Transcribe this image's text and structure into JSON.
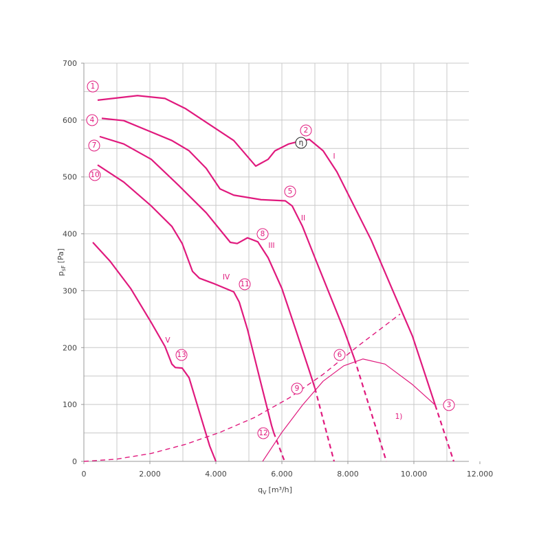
{
  "chart_data": {
    "type": "line",
    "xlabel": {
      "main": "q",
      "sub": "V",
      "unit": "[m³/h]"
    },
    "ylabel": {
      "main": "p",
      "sub": "sF",
      "unit": "[Pa]"
    },
    "xlim": [
      0,
      12000
    ],
    "ylim": [
      0,
      700
    ],
    "xticks": [
      0,
      {
        "value": 2000,
        "label": "2.000"
      },
      {
        "value": 4000,
        "label": "4.000"
      },
      {
        "value": 6000,
        "label": "6.000"
      },
      {
        "value": 8000,
        "label": "8.000"
      },
      {
        "value": 10000,
        "label": "10.000"
      },
      {
        "value": 12000,
        "label": "12.000"
      }
    ],
    "yticks": [
      0,
      100,
      200,
      300,
      400,
      500,
      600,
      700
    ],
    "xgrid": [
      1000,
      2000,
      3000,
      4000,
      5000,
      6000,
      7000,
      8000,
      9000,
      10000,
      11000
    ],
    "ygrid": [
      50,
      100,
      150,
      200,
      250,
      300,
      350,
      400,
      450,
      500,
      550,
      600,
      650,
      700
    ],
    "grid": true,
    "series": [
      {
        "color": "#e0197d",
        "dash": false,
        "width": 2.2,
        "x": [
          417,
          1625,
          2458,
          3083,
          3708,
          4542,
          5208,
          5583,
          5792,
          6208,
          6625,
          6833,
          7250,
          7667,
          8083,
          8708,
          9333,
          9958,
          10646
        ],
        "values": [
          635,
          643,
          638,
          620,
          596,
          564,
          519,
          531,
          546,
          558,
          564,
          566,
          546,
          509,
          461,
          389,
          304,
          220,
          99
        ]
      },
      {
        "color": "#e0197d",
        "dash": true,
        "width": 2.2,
        "x": [
          10646,
          11208
        ],
        "values": [
          99,
          0
        ]
      },
      {
        "color": "#e0197d",
        "dash": false,
        "width": 2.2,
        "x": [
          542,
          1208,
          2042,
          2667,
          3188,
          3708,
          4125,
          4542,
          5375,
          6104,
          6313,
          6625,
          7042,
          7458,
          7875,
          8200
        ],
        "values": [
          603,
          599,
          579,
          564,
          546,
          515,
          479,
          468,
          460,
          458,
          449,
          413,
          352,
          292,
          232,
          180
        ]
      },
      {
        "color": "#e0197d",
        "dash": true,
        "width": 2.2,
        "x": [
          8200,
          9167
        ],
        "values": [
          180,
          0
        ]
      },
      {
        "color": "#e0197d",
        "dash": false,
        "width": 2.2,
        "x": [
          479,
          1208,
          2042,
          2875,
          3708,
          4438,
          4646,
          4958,
          5271,
          5583,
          6000,
          6417,
          6833,
          7000
        ],
        "values": [
          571,
          558,
          531,
          485,
          437,
          385,
          383,
          393,
          386,
          358,
          304,
          232,
          159,
          129
        ]
      },
      {
        "color": "#e0197d",
        "dash": true,
        "width": 2.2,
        "x": [
          7000,
          7583
        ],
        "values": [
          129,
          0
        ]
      },
      {
        "color": "#e0197d",
        "dash": false,
        "width": 2.2,
        "x": [
          417,
          1208,
          2042,
          2667,
          2979,
          3292,
          3500,
          3917,
          4542,
          4708,
          4958,
          5375,
          5688,
          5750
        ],
        "values": [
          521,
          491,
          449,
          413,
          383,
          334,
          322,
          313,
          298,
          280,
          232,
          135,
          63,
          51
        ]
      },
      {
        "color": "#e0197d",
        "dash": true,
        "width": 2.2,
        "x": [
          5750,
          6083
        ],
        "values": [
          51,
          0
        ]
      },
      {
        "color": "#e0197d",
        "dash": false,
        "width": 2.2,
        "x": [
          271,
          792,
          1417,
          2042,
          2458,
          2667,
          2771,
          2979,
          3188,
          3500,
          3813,
          4000
        ],
        "values": [
          385,
          352,
          304,
          244,
          202,
          171,
          165,
          164,
          147,
          87,
          27,
          0
        ]
      },
      {
        "color": "#e0197d",
        "dash": true,
        "width": 1.4,
        "x": [
          0,
          1000,
          2042,
          3083,
          4125,
          5167,
          6208,
          7250,
          8292,
          9583
        ],
        "values": [
          0,
          4,
          14,
          30,
          51,
          77,
          111,
          153,
          202,
          259
        ]
      },
      {
        "color": "#e0197d",
        "dash": false,
        "width": 1.2,
        "x": [
          5417,
          6000,
          6625,
          7250,
          7875,
          8458,
          9125,
          9958,
          10646
        ],
        "values": [
          0,
          51,
          99,
          141,
          168,
          180,
          171,
          135,
          99
        ]
      }
    ],
    "annotations": [
      {
        "text": "1",
        "circled": true
      },
      {
        "text": "2",
        "circled": true
      },
      {
        "text": "η",
        "circled": true,
        "color": "#222"
      },
      {
        "text": "I",
        "circled": false
      },
      {
        "text": "4",
        "circled": true
      },
      {
        "text": "5",
        "circled": true
      },
      {
        "text": "II",
        "circled": false
      },
      {
        "text": "7",
        "circled": true
      },
      {
        "text": "8",
        "circled": true
      },
      {
        "text": "III",
        "circled": false
      },
      {
        "text": "10",
        "circled": true
      },
      {
        "text": "IV",
        "circled": false
      },
      {
        "text": "11",
        "circled": true
      },
      {
        "text": "V",
        "circled": false
      },
      {
        "text": "13",
        "circled": true
      },
      {
        "text": "6",
        "circled": true
      },
      {
        "text": "9",
        "circled": true
      },
      {
        "text": "12",
        "circled": true
      },
      {
        "text": "3",
        "circled": true
      },
      {
        "text": "1)",
        "circled": false
      }
    ]
  }
}
